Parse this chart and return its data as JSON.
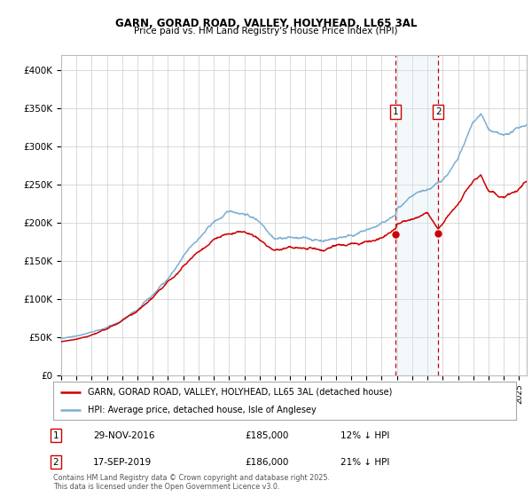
{
  "title": "GARN, GORAD ROAD, VALLEY, HOLYHEAD, LL65 3AL",
  "subtitle": "Price paid vs. HM Land Registry's House Price Index (HPI)",
  "ylabel_ticks": [
    "£0",
    "£50K",
    "£100K",
    "£150K",
    "£200K",
    "£250K",
    "£300K",
    "£350K",
    "£400K"
  ],
  "ytick_values": [
    0,
    50000,
    100000,
    150000,
    200000,
    250000,
    300000,
    350000,
    400000
  ],
  "ylim": [
    0,
    420000
  ],
  "xlim_start": 1995.0,
  "xlim_end": 2025.5,
  "hpi_color": "#7bafd4",
  "property_color": "#cc0000",
  "vline_color": "#cc0000",
  "highlight_region_color": "#daeaf5",
  "sale1_x": 2016.91,
  "sale1_y": 185000,
  "sale1_label": "1",
  "sale2_x": 2019.71,
  "sale2_y": 186000,
  "sale2_label": "2",
  "legend_property": "GARN, GORAD ROAD, VALLEY, HOLYHEAD, LL65 3AL (detached house)",
  "legend_hpi": "HPI: Average price, detached house, Isle of Anglesey",
  "table_rows": [
    {
      "num": "1",
      "date": "29-NOV-2016",
      "price": "£185,000",
      "note": "12% ↓ HPI"
    },
    {
      "num": "2",
      "date": "17-SEP-2019",
      "price": "£186,000",
      "note": "21% ↓ HPI"
    }
  ],
  "footnote": "Contains HM Land Registry data © Crown copyright and database right 2025.\nThis data is licensed under the Open Government Licence v3.0.",
  "bg_color": "#ffffff",
  "grid_color": "#cccccc"
}
